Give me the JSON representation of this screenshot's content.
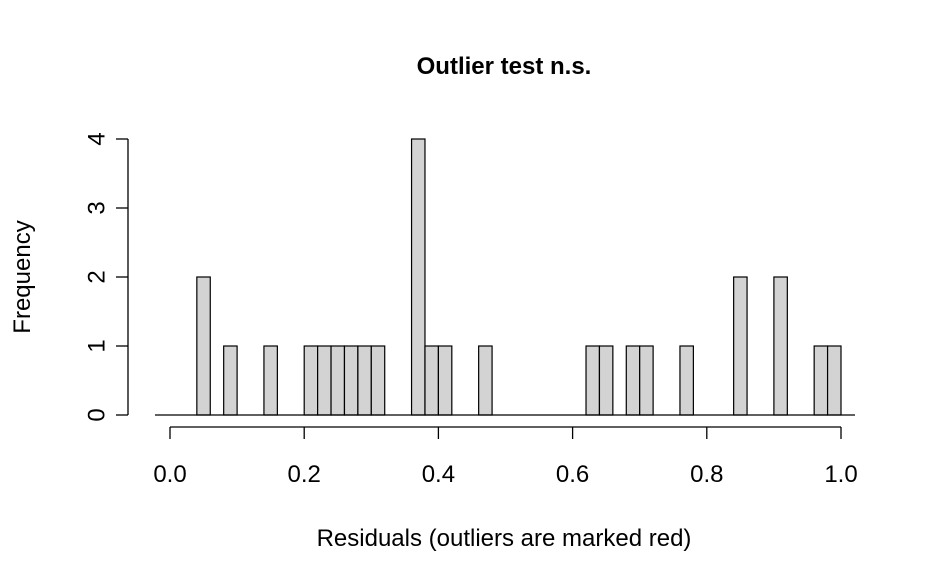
{
  "chart_data": {
    "type": "bar",
    "title": "Outlier test n.s.",
    "xlabel": "Residuals (outliers are marked red)",
    "ylabel": "Frequency",
    "xlim": [
      0.0,
      1.0
    ],
    "ylim": [
      0,
      4
    ],
    "x_ticks": [
      "0.0",
      "0.2",
      "0.4",
      "0.6",
      "0.8",
      "1.0"
    ],
    "y_ticks": [
      "0",
      "1",
      "2",
      "3",
      "4"
    ],
    "bin_width": 0.02,
    "bins": [
      {
        "start": 0.04,
        "count": 2
      },
      {
        "start": 0.08,
        "count": 1
      },
      {
        "start": 0.14,
        "count": 1
      },
      {
        "start": 0.2,
        "count": 1
      },
      {
        "start": 0.22,
        "count": 1
      },
      {
        "start": 0.24,
        "count": 1
      },
      {
        "start": 0.26,
        "count": 1
      },
      {
        "start": 0.28,
        "count": 1
      },
      {
        "start": 0.3,
        "count": 1
      },
      {
        "start": 0.36,
        "count": 4
      },
      {
        "start": 0.38,
        "count": 1
      },
      {
        "start": 0.4,
        "count": 1
      },
      {
        "start": 0.46,
        "count": 1
      },
      {
        "start": 0.62,
        "count": 1
      },
      {
        "start": 0.64,
        "count": 1
      },
      {
        "start": 0.68,
        "count": 1
      },
      {
        "start": 0.7,
        "count": 1
      },
      {
        "start": 0.76,
        "count": 1
      },
      {
        "start": 0.84,
        "count": 2
      },
      {
        "start": 0.9,
        "count": 2
      },
      {
        "start": 0.96,
        "count": 1
      },
      {
        "start": 0.98,
        "count": 1
      }
    ],
    "colors": {
      "bar_fill": "#d3d3d3",
      "bar_stroke": "#000000"
    },
    "grid": false,
    "legend": "none"
  }
}
